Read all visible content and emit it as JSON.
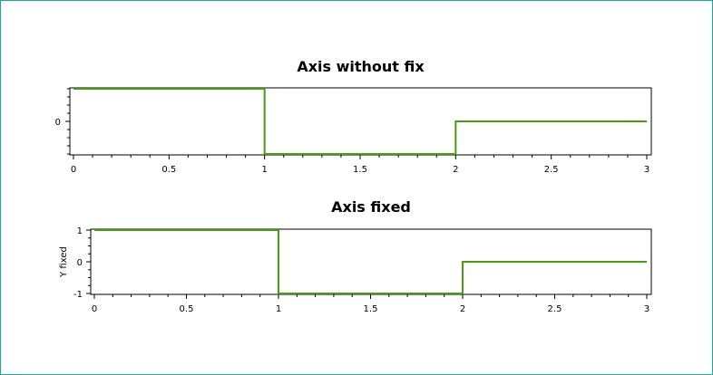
{
  "chart_data": [
    {
      "type": "line",
      "step": true,
      "title": "Axis without fix",
      "xlabel": "",
      "ylabel": "",
      "xlim": [
        0,
        3
      ],
      "ylim": [
        -1,
        1
      ],
      "x_ticks": [
        0,
        0.5,
        1,
        1.5,
        2,
        2.5,
        3
      ],
      "x_tick_labels": [
        "0",
        "0.5",
        "1",
        "1.5",
        "2",
        "2.5",
        "3"
      ],
      "y_ticks": [
        0
      ],
      "y_tick_labels": [
        "0"
      ],
      "grid": false,
      "series": [
        {
          "color": "#4a9a12",
          "x": [
            0,
            1,
            1,
            2,
            2,
            3
          ],
          "y": [
            1,
            1,
            -1,
            -1,
            0,
            0
          ]
        }
      ]
    },
    {
      "type": "line",
      "step": true,
      "title": "Axis fixed",
      "xlabel": "",
      "ylabel": "Y fixed",
      "xlim": [
        0,
        3
      ],
      "ylim": [
        -1,
        1
      ],
      "x_ticks": [
        0,
        0.5,
        1,
        1.5,
        2,
        2.5,
        3
      ],
      "x_tick_labels": [
        "0",
        "0.5",
        "1",
        "1.5",
        "2",
        "2.5",
        "3"
      ],
      "y_ticks": [
        1,
        0,
        -1
      ],
      "y_tick_labels": [
        "1",
        "0",
        "-1"
      ],
      "grid": false,
      "series": [
        {
          "color": "#4a9a12",
          "x": [
            0,
            1,
            1,
            2,
            2,
            3
          ],
          "y": [
            1,
            1,
            -1,
            -1,
            0,
            0
          ]
        }
      ]
    }
  ]
}
